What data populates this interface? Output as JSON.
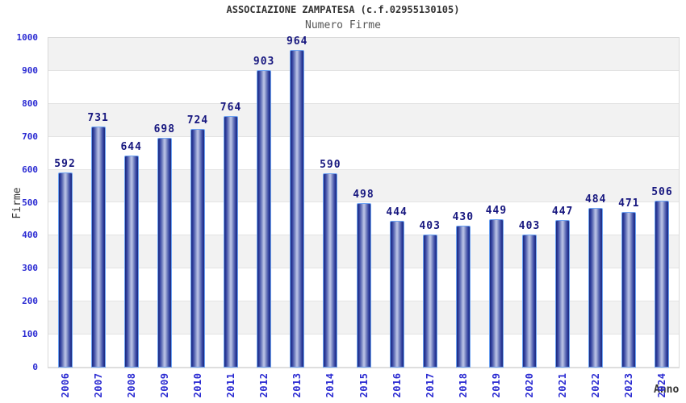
{
  "chart_data": {
    "type": "bar",
    "title": "ASSOCIAZIONE ZAMPATESA (c.f.02955130105)",
    "subtitle": "Numero Firme",
    "xlabel": "Anno",
    "ylabel": "Firme",
    "categories": [
      "2006",
      "2007",
      "2008",
      "2009",
      "2010",
      "2011",
      "2012",
      "2013",
      "2014",
      "2015",
      "2016",
      "2017",
      "2018",
      "2019",
      "2020",
      "2021",
      "2022",
      "2023",
      "2024"
    ],
    "values": [
      592,
      731,
      644,
      698,
      724,
      764,
      903,
      964,
      590,
      498,
      444,
      403,
      430,
      449,
      403,
      447,
      484,
      471,
      506
    ],
    "ylim": [
      0,
      1000
    ],
    "ytick_step": 100,
    "yticks": [
      0,
      100,
      200,
      300,
      400,
      500,
      600,
      700,
      800,
      900,
      1000
    ],
    "grid": true,
    "legend": false,
    "band_alternating": true
  },
  "colors": {
    "background": "#ffffff",
    "title": "#333333",
    "subtitle": "#555555",
    "axis_title": "#333333",
    "tick_labels": "#2a2ad2",
    "value_labels": "#17177f",
    "bar_border": "#6da2f2",
    "bar_gradient": [
      "#1c2b7c",
      "#2e3d9e",
      "#6f7dbd",
      "#b6bee3"
    ],
    "band_gray": "#f2f2f2",
    "band_white": "#ffffff",
    "gridline": "#e3e3e3",
    "plot_border": "#d9d9d9"
  }
}
